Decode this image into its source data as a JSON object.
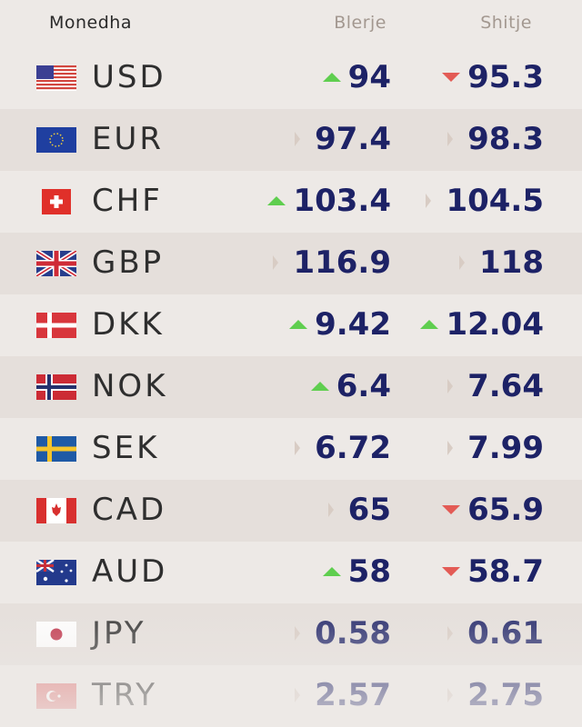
{
  "header": {
    "currency": "Monedha",
    "buy": "Blerje",
    "sell": "Shitje"
  },
  "colors": {
    "value": "#1d2266",
    "up": "#5fce4f",
    "down": "#e35b55",
    "neutral": "#d8ccc4"
  },
  "rates": [
    {
      "code": "USD",
      "flag": "us-flag-icon",
      "buy": "94",
      "buy_trend": "up",
      "sell": "95.3",
      "sell_trend": "down"
    },
    {
      "code": "EUR",
      "flag": "eu-flag-icon",
      "buy": "97.4",
      "buy_trend": "neutral",
      "sell": "98.3",
      "sell_trend": "neutral"
    },
    {
      "code": "CHF",
      "flag": "ch-flag-icon",
      "buy": "103.4",
      "buy_trend": "up",
      "sell": "104.5",
      "sell_trend": "neutral"
    },
    {
      "code": "GBP",
      "flag": "gb-flag-icon",
      "buy": "116.9",
      "buy_trend": "neutral",
      "sell": "118",
      "sell_trend": "neutral"
    },
    {
      "code": "DKK",
      "flag": "dk-flag-icon",
      "buy": "9.42",
      "buy_trend": "up",
      "sell": "12.04",
      "sell_trend": "up"
    },
    {
      "code": "NOK",
      "flag": "no-flag-icon",
      "buy": "6.4",
      "buy_trend": "up",
      "sell": "7.64",
      "sell_trend": "neutral"
    },
    {
      "code": "SEK",
      "flag": "se-flag-icon",
      "buy": "6.72",
      "buy_trend": "neutral",
      "sell": "7.99",
      "sell_trend": "neutral"
    },
    {
      "code": "CAD",
      "flag": "ca-flag-icon",
      "buy": "65",
      "buy_trend": "neutral",
      "sell": "65.9",
      "sell_trend": "down"
    },
    {
      "code": "AUD",
      "flag": "au-flag-icon",
      "buy": "58",
      "buy_trend": "up",
      "sell": "58.7",
      "sell_trend": "down"
    },
    {
      "code": "JPY",
      "flag": "jp-flag-icon",
      "buy": "0.58",
      "buy_trend": "neutral",
      "sell": "0.61",
      "sell_trend": "neutral"
    },
    {
      "code": "TRY",
      "flag": "tr-flag-icon",
      "buy": "2.57",
      "buy_trend": "neutral",
      "sell": "2.75",
      "sell_trend": "neutral"
    }
  ]
}
